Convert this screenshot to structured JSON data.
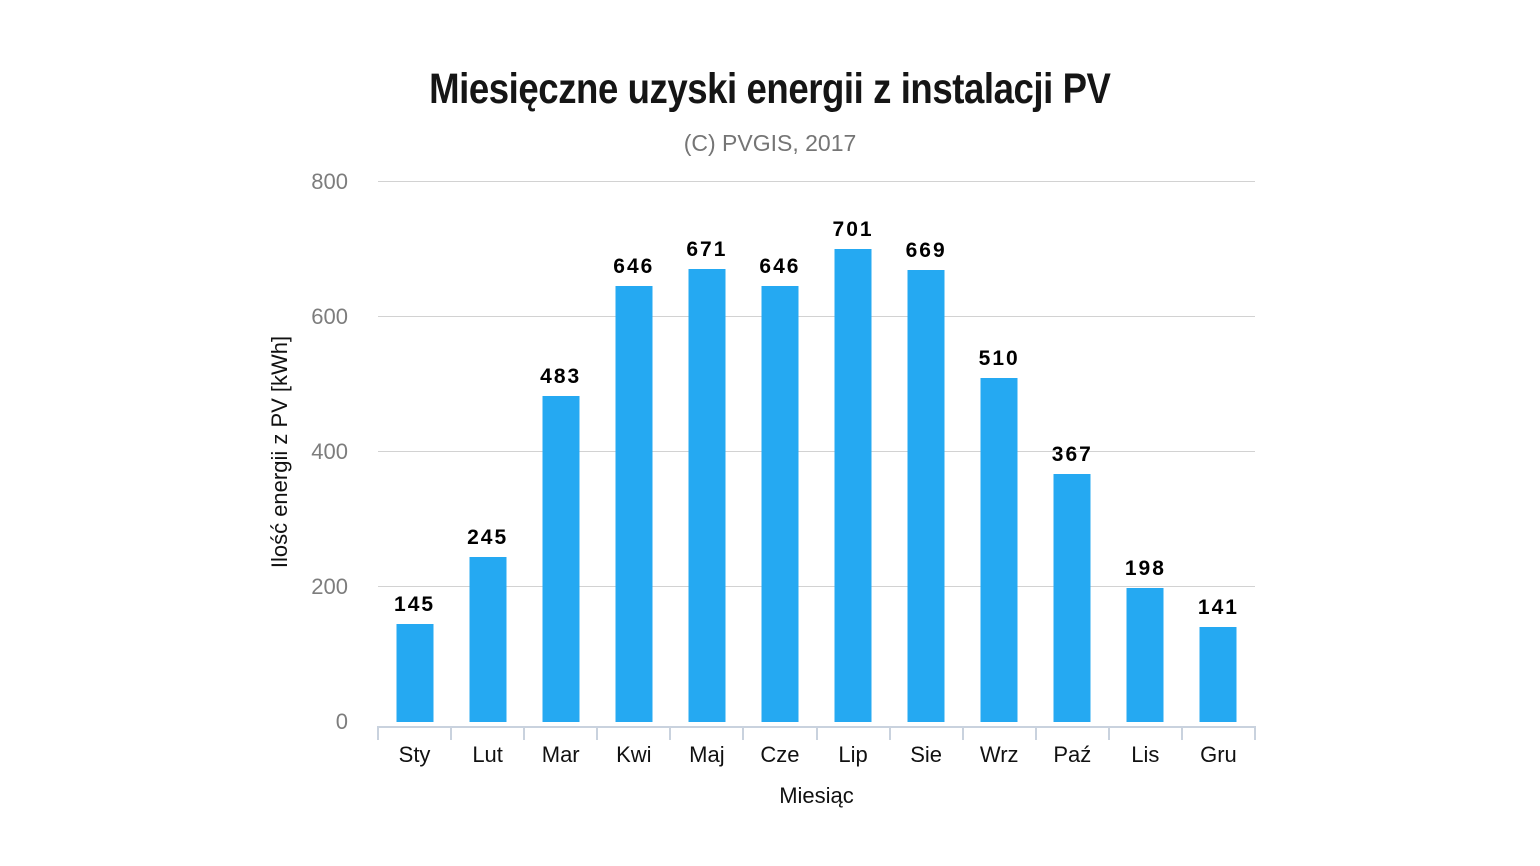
{
  "page": {
    "background": "#ffffff"
  },
  "chart_data": {
    "type": "bar",
    "title": "Miesięczne uzyski energii z instalacji PV",
    "subtitle": "(C) PVGIS, 2017",
    "xlabel": "Miesiąc",
    "ylabel": "Ilość energii z PV [kWh]",
    "categories": [
      "Sty",
      "Lut",
      "Mar",
      "Kwi",
      "Maj",
      "Cze",
      "Lip",
      "Sie",
      "Wrz",
      "Paź",
      "Lis",
      "Gru"
    ],
    "values": [
      145,
      245,
      483,
      646,
      671,
      646,
      701,
      669,
      510,
      367,
      198,
      141
    ],
    "ylim": [
      0,
      800
    ],
    "yticks": [
      0,
      200,
      400,
      600,
      800
    ],
    "grid": true,
    "legend": false,
    "value_labels_shown": true,
    "colors": {
      "bar": "#25a9f2",
      "gridline": "#d2d2d2",
      "axis_line": "#c9d2de",
      "y_tick_label": "#7d7d7d",
      "title": "#151515",
      "subtitle": "#757575",
      "value_label": "#000000",
      "x_tick_label": "#111111"
    }
  }
}
